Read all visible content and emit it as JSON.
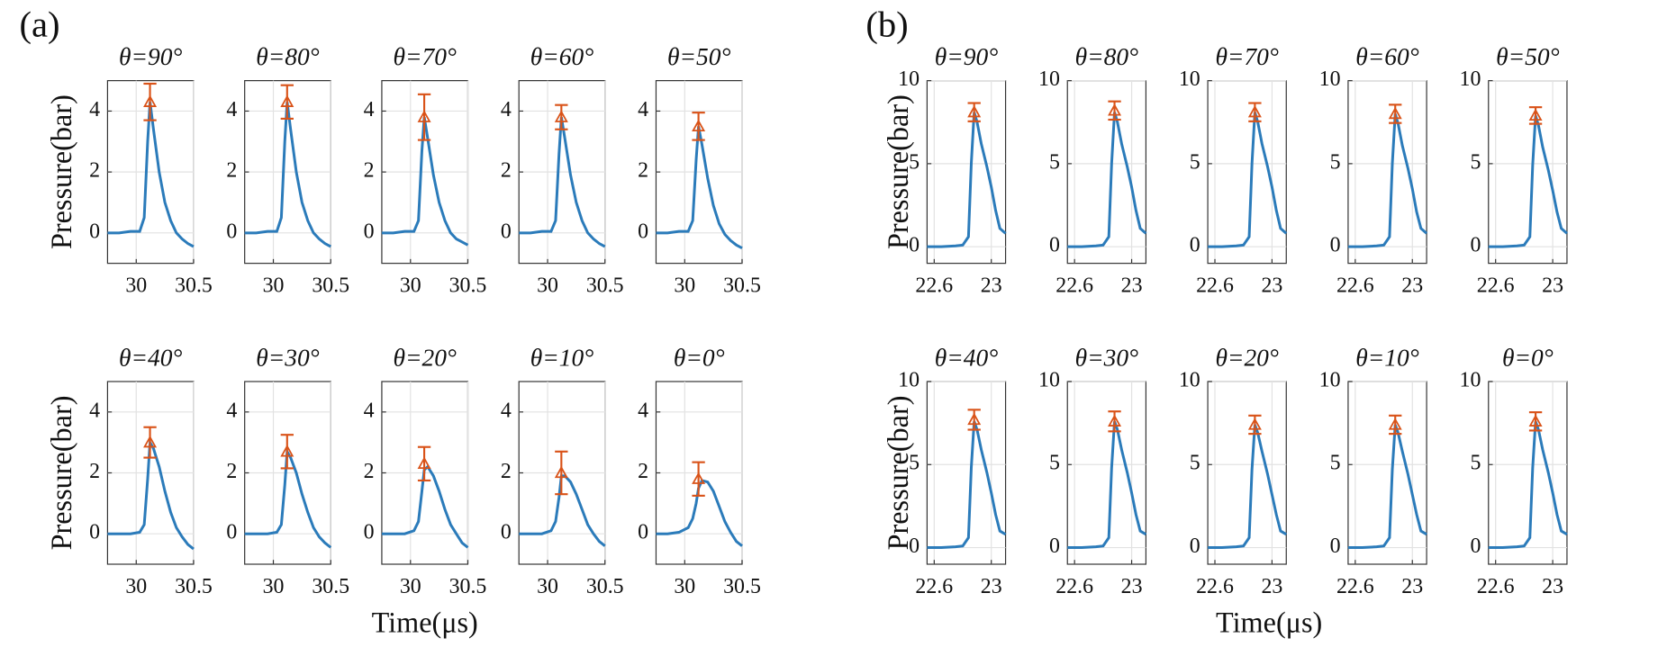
{
  "panels": [
    {
      "label": "(a)",
      "ylabel": "Pressure(bar)",
      "xlabel": "Time(μs)"
    },
    {
      "label": "(b)",
      "ylabel": "Pressure(bar)",
      "xlabel": "Time(μs)"
    }
  ],
  "chart_data": [
    {
      "type": "line",
      "title": "θ=90°",
      "xlim": [
        29.75,
        30.5
      ],
      "ylim": [
        -1,
        5
      ],
      "xticks": [
        30,
        30.5
      ],
      "yticks": [
        0,
        2,
        4
      ],
      "grid": true,
      "color": "#2b7bba",
      "x": [
        29.75,
        29.85,
        29.95,
        30.03,
        30.07,
        30.1,
        30.12,
        30.15,
        30.2,
        30.25,
        30.3,
        30.35,
        30.4,
        30.45,
        30.5
      ],
      "values": [
        0,
        0,
        0.05,
        0.05,
        0.5,
        3.0,
        4.3,
        3.4,
        2.0,
        1.0,
        0.4,
        0.0,
        -0.2,
        -0.35,
        -0.45
      ],
      "errorbar": {
        "x": 30.12,
        "value": 4.3,
        "error": 0.6,
        "color": "#d95319"
      }
    },
    {
      "type": "line",
      "title": "θ=80°",
      "xlim": [
        29.75,
        30.5
      ],
      "ylim": [
        -1,
        5
      ],
      "xticks": [
        30,
        30.5
      ],
      "yticks": [
        0,
        2,
        4
      ],
      "grid": true,
      "color": "#2b7bba",
      "x": [
        29.75,
        29.85,
        29.95,
        30.03,
        30.07,
        30.1,
        30.12,
        30.15,
        30.2,
        30.25,
        30.3,
        30.35,
        30.4,
        30.45,
        30.5
      ],
      "values": [
        0,
        0,
        0.05,
        0.05,
        0.5,
        3.0,
        4.3,
        3.4,
        2.0,
        1.0,
        0.4,
        0.0,
        -0.2,
        -0.35,
        -0.45
      ],
      "errorbar": {
        "x": 30.12,
        "value": 4.3,
        "error": 0.55,
        "color": "#d95319"
      }
    },
    {
      "type": "line",
      "title": "θ=70°",
      "xlim": [
        29.75,
        30.5
      ],
      "ylim": [
        -1,
        5
      ],
      "xticks": [
        30,
        30.5
      ],
      "yticks": [
        0,
        2,
        4
      ],
      "grid": true,
      "color": "#2b7bba",
      "x": [
        29.75,
        29.85,
        29.95,
        30.03,
        30.07,
        30.1,
        30.12,
        30.15,
        30.2,
        30.25,
        30.3,
        30.35,
        30.4,
        30.45,
        30.5
      ],
      "values": [
        0,
        0,
        0.05,
        0.05,
        0.4,
        2.7,
        3.8,
        3.1,
        1.9,
        1.0,
        0.4,
        0.0,
        -0.2,
        -0.3,
        -0.4
      ],
      "errorbar": {
        "x": 30.12,
        "value": 3.8,
        "error": 0.75,
        "color": "#d95319"
      }
    },
    {
      "type": "line",
      "title": "θ=60°",
      "xlim": [
        29.75,
        30.5
      ],
      "ylim": [
        -1,
        5
      ],
      "xticks": [
        30,
        30.5
      ],
      "yticks": [
        0,
        2,
        4
      ],
      "grid": true,
      "color": "#2b7bba",
      "x": [
        29.75,
        29.85,
        29.95,
        30.03,
        30.07,
        30.1,
        30.12,
        30.15,
        30.2,
        30.25,
        30.3,
        30.35,
        30.4,
        30.45,
        30.5
      ],
      "values": [
        0,
        0,
        0.05,
        0.05,
        0.4,
        2.6,
        3.8,
        3.1,
        1.9,
        1.0,
        0.4,
        0.0,
        -0.2,
        -0.35,
        -0.45
      ],
      "errorbar": {
        "x": 30.12,
        "value": 3.8,
        "error": 0.4,
        "color": "#d95319"
      }
    },
    {
      "type": "line",
      "title": "θ=50°",
      "xlim": [
        29.75,
        30.5
      ],
      "ylim": [
        -1,
        5
      ],
      "xticks": [
        30,
        30.5
      ],
      "yticks": [
        0,
        2,
        4
      ],
      "grid": true,
      "color": "#2b7bba",
      "x": [
        29.75,
        29.85,
        29.95,
        30.03,
        30.07,
        30.1,
        30.12,
        30.15,
        30.2,
        30.25,
        30.3,
        30.35,
        30.4,
        30.45,
        30.5
      ],
      "values": [
        0,
        0,
        0.05,
        0.05,
        0.4,
        2.4,
        3.5,
        2.9,
        1.8,
        0.9,
        0.3,
        -0.05,
        -0.25,
        -0.4,
        -0.5
      ],
      "errorbar": {
        "x": 30.12,
        "value": 3.5,
        "error": 0.45,
        "color": "#d95319"
      }
    },
    {
      "type": "line",
      "title": "θ=40°",
      "xlim": [
        29.75,
        30.5
      ],
      "ylim": [
        -1,
        5
      ],
      "xticks": [
        30,
        30.5
      ],
      "yticks": [
        0,
        2,
        4
      ],
      "grid": true,
      "color": "#2b7bba",
      "x": [
        29.75,
        29.85,
        29.95,
        30.03,
        30.07,
        30.1,
        30.12,
        30.15,
        30.2,
        30.25,
        30.3,
        30.35,
        30.4,
        30.45,
        30.5
      ],
      "values": [
        0,
        0,
        0,
        0.05,
        0.3,
        1.8,
        3.0,
        2.8,
        2.2,
        1.4,
        0.7,
        0.2,
        -0.1,
        -0.35,
        -0.5
      ],
      "errorbar": {
        "x": 30.12,
        "value": 3.0,
        "error": 0.5,
        "color": "#d95319"
      }
    },
    {
      "type": "line",
      "title": "θ=30°",
      "xlim": [
        29.75,
        30.5
      ],
      "ylim": [
        -1,
        5
      ],
      "xticks": [
        30,
        30.5
      ],
      "yticks": [
        0,
        2,
        4
      ],
      "grid": true,
      "color": "#2b7bba",
      "x": [
        29.75,
        29.85,
        29.95,
        30.03,
        30.07,
        30.1,
        30.12,
        30.15,
        30.2,
        30.25,
        30.3,
        30.35,
        30.4,
        30.45,
        30.5
      ],
      "values": [
        0,
        0,
        0,
        0.05,
        0.3,
        1.6,
        2.7,
        2.5,
        2.0,
        1.3,
        0.7,
        0.2,
        -0.1,
        -0.3,
        -0.45
      ],
      "errorbar": {
        "x": 30.12,
        "value": 2.7,
        "error": 0.55,
        "color": "#d95319"
      }
    },
    {
      "type": "line",
      "title": "θ=20°",
      "xlim": [
        29.75,
        30.5
      ],
      "ylim": [
        -1,
        5
      ],
      "xticks": [
        30,
        30.5
      ],
      "yticks": [
        0,
        2,
        4
      ],
      "grid": true,
      "color": "#2b7bba",
      "x": [
        29.75,
        29.85,
        29.95,
        30.03,
        30.07,
        30.1,
        30.12,
        30.15,
        30.2,
        30.25,
        30.3,
        30.35,
        30.4,
        30.45,
        30.5
      ],
      "values": [
        0,
        0,
        0,
        0.1,
        0.4,
        1.4,
        2.1,
        2.2,
        1.9,
        1.4,
        0.8,
        0.3,
        0,
        -0.3,
        -0.45
      ],
      "errorbar": {
        "x": 30.12,
        "value": 2.3,
        "error": 0.55,
        "color": "#d95319"
      }
    },
    {
      "type": "line",
      "title": "θ=10°",
      "xlim": [
        29.75,
        30.5
      ],
      "ylim": [
        -1,
        5
      ],
      "xticks": [
        30,
        30.5
      ],
      "yticks": [
        0,
        2,
        4
      ],
      "grid": true,
      "color": "#2b7bba",
      "x": [
        29.75,
        29.85,
        29.95,
        30.03,
        30.07,
        30.1,
        30.12,
        30.15,
        30.2,
        30.25,
        30.3,
        30.35,
        30.4,
        30.45,
        30.5
      ],
      "values": [
        0,
        0,
        0,
        0.1,
        0.4,
        1.2,
        1.9,
        1.9,
        1.7,
        1.3,
        0.8,
        0.3,
        0,
        -0.25,
        -0.4
      ],
      "errorbar": {
        "x": 30.12,
        "value": 2.0,
        "error": 0.7,
        "color": "#d95319"
      }
    },
    {
      "type": "line",
      "title": "θ=0°",
      "xlim": [
        29.75,
        30.5
      ],
      "ylim": [
        -1,
        5
      ],
      "xticks": [
        30,
        30.5
      ],
      "yticks": [
        0,
        2,
        4
      ],
      "grid": true,
      "color": "#2b7bba",
      "x": [
        29.75,
        29.85,
        29.95,
        30.03,
        30.07,
        30.1,
        30.12,
        30.15,
        30.2,
        30.25,
        30.3,
        30.35,
        30.4,
        30.45,
        30.5
      ],
      "values": [
        0,
        0,
        0.05,
        0.2,
        0.5,
        1.0,
        1.5,
        1.75,
        1.7,
        1.4,
        0.9,
        0.4,
        0.05,
        -0.25,
        -0.4
      ],
      "errorbar": {
        "x": 30.12,
        "value": 1.8,
        "error": 0.55,
        "color": "#d95319"
      }
    },
    {
      "type": "line",
      "title": "θ=90°",
      "xlim": [
        22.55,
        23.1
      ],
      "ylim": [
        -1,
        10
      ],
      "xticks": [
        22.6,
        23
      ],
      "yticks": [
        0,
        5,
        10
      ],
      "grid": true,
      "color": "#2b7bba",
      "x": [
        22.55,
        22.65,
        22.75,
        22.8,
        22.84,
        22.86,
        22.88,
        22.9,
        22.93,
        22.97,
        23.0,
        23.03,
        23.06,
        23.1
      ],
      "values": [
        0,
        0,
        0.05,
        0.1,
        0.6,
        5,
        8.1,
        7.5,
        6.2,
        4.8,
        3.6,
        2.2,
        1.1,
        0.8
      ],
      "errorbar": {
        "x": 22.88,
        "value": 8.1,
        "error": 0.55,
        "color": "#d95319"
      }
    },
    {
      "type": "line",
      "title": "θ=80°",
      "xlim": [
        22.55,
        23.1
      ],
      "ylim": [
        -1,
        10
      ],
      "xticks": [
        22.6,
        23
      ],
      "yticks": [
        0,
        5,
        10
      ],
      "grid": true,
      "color": "#2b7bba",
      "x": [
        22.55,
        22.65,
        22.75,
        22.8,
        22.84,
        22.86,
        22.88,
        22.9,
        22.93,
        22.97,
        23.0,
        23.03,
        23.06,
        23.1
      ],
      "values": [
        0,
        0,
        0.05,
        0.1,
        0.6,
        5,
        8.1,
        7.5,
        6.2,
        4.8,
        3.6,
        2.2,
        1.1,
        0.8
      ],
      "errorbar": {
        "x": 22.88,
        "value": 8.2,
        "error": 0.55,
        "color": "#d95319"
      }
    },
    {
      "type": "line",
      "title": "θ=70°",
      "xlim": [
        22.55,
        23.1
      ],
      "ylim": [
        -1,
        10
      ],
      "xticks": [
        22.6,
        23
      ],
      "yticks": [
        0,
        5,
        10
      ],
      "grid": true,
      "color": "#2b7bba",
      "x": [
        22.55,
        22.65,
        22.75,
        22.8,
        22.84,
        22.86,
        22.88,
        22.9,
        22.93,
        22.97,
        23.0,
        23.03,
        23.06,
        23.1
      ],
      "values": [
        0,
        0,
        0.05,
        0.1,
        0.6,
        5,
        8.1,
        7.5,
        6.2,
        4.8,
        3.6,
        2.2,
        1.1,
        0.8
      ],
      "errorbar": {
        "x": 22.88,
        "value": 8.1,
        "error": 0.55,
        "color": "#d95319"
      }
    },
    {
      "type": "line",
      "title": "θ=60°",
      "xlim": [
        22.55,
        23.1
      ],
      "ylim": [
        -1,
        10
      ],
      "xticks": [
        22.6,
        23
      ],
      "yticks": [
        0,
        5,
        10
      ],
      "grid": true,
      "color": "#2b7bba",
      "x": [
        22.55,
        22.65,
        22.75,
        22.8,
        22.84,
        22.86,
        22.88,
        22.9,
        22.93,
        22.97,
        23.0,
        23.03,
        23.06,
        23.1
      ],
      "values": [
        0,
        0,
        0.05,
        0.1,
        0.6,
        5,
        8.0,
        7.4,
        6.1,
        4.7,
        3.5,
        2.1,
        1.1,
        0.8
      ],
      "errorbar": {
        "x": 22.88,
        "value": 8.0,
        "error": 0.55,
        "color": "#d95319"
      }
    },
    {
      "type": "line",
      "title": "θ=50°",
      "xlim": [
        22.55,
        23.1
      ],
      "ylim": [
        -1,
        10
      ],
      "xticks": [
        22.6,
        23
      ],
      "yticks": [
        0,
        5,
        10
      ],
      "grid": true,
      "color": "#2b7bba",
      "x": [
        22.55,
        22.65,
        22.75,
        22.8,
        22.84,
        22.86,
        22.88,
        22.9,
        22.93,
        22.97,
        23.0,
        23.03,
        23.06,
        23.1
      ],
      "values": [
        0,
        0,
        0.05,
        0.1,
        0.6,
        4.9,
        7.9,
        7.3,
        6.0,
        4.6,
        3.4,
        2.1,
        1.1,
        0.8
      ],
      "errorbar": {
        "x": 22.88,
        "value": 7.9,
        "error": 0.5,
        "color": "#d95319"
      }
    },
    {
      "type": "line",
      "title": "θ=40°",
      "xlim": [
        22.55,
        23.1
      ],
      "ylim": [
        -1,
        10
      ],
      "xticks": [
        22.6,
        23
      ],
      "yticks": [
        0,
        5,
        10
      ],
      "grid": true,
      "color": "#2b7bba",
      "x": [
        22.55,
        22.65,
        22.75,
        22.8,
        22.84,
        22.86,
        22.88,
        22.9,
        22.93,
        22.97,
        23.0,
        23.03,
        23.06,
        23.1
      ],
      "values": [
        0,
        0,
        0.05,
        0.1,
        0.6,
        4.8,
        7.6,
        7.1,
        5.9,
        4.5,
        3.3,
        2.0,
        1.0,
        0.8
      ],
      "errorbar": {
        "x": 22.88,
        "value": 7.7,
        "error": 0.6,
        "color": "#d95319"
      }
    },
    {
      "type": "line",
      "title": "θ=30°",
      "xlim": [
        22.55,
        23.1
      ],
      "ylim": [
        -1,
        10
      ],
      "xticks": [
        22.6,
        23
      ],
      "yticks": [
        0,
        5,
        10
      ],
      "grid": true,
      "color": "#2b7bba",
      "x": [
        22.55,
        22.65,
        22.75,
        22.8,
        22.84,
        22.86,
        22.88,
        22.9,
        22.93,
        22.97,
        23.0,
        23.03,
        23.06,
        23.1
      ],
      "values": [
        0,
        0,
        0.05,
        0.1,
        0.6,
        4.8,
        7.6,
        7.1,
        5.9,
        4.5,
        3.3,
        2.0,
        1.0,
        0.8
      ],
      "errorbar": {
        "x": 22.88,
        "value": 7.6,
        "error": 0.6,
        "color": "#d95319"
      }
    },
    {
      "type": "line",
      "title": "θ=20°",
      "xlim": [
        22.55,
        23.1
      ],
      "ylim": [
        -1,
        10
      ],
      "xticks": [
        22.6,
        23
      ],
      "yticks": [
        0,
        5,
        10
      ],
      "grid": true,
      "color": "#2b7bba",
      "x": [
        22.55,
        22.65,
        22.75,
        22.8,
        22.84,
        22.86,
        22.88,
        22.9,
        22.93,
        22.97,
        23.0,
        23.03,
        23.06,
        23.1
      ],
      "values": [
        0,
        0,
        0.05,
        0.1,
        0.6,
        4.7,
        7.4,
        6.9,
        5.8,
        4.4,
        3.2,
        2.0,
        1.0,
        0.8
      ],
      "errorbar": {
        "x": 22.88,
        "value": 7.4,
        "error": 0.55,
        "color": "#d95319"
      }
    },
    {
      "type": "line",
      "title": "θ=10°",
      "xlim": [
        22.55,
        23.1
      ],
      "ylim": [
        -1,
        10
      ],
      "xticks": [
        22.6,
        23
      ],
      "yticks": [
        0,
        5,
        10
      ],
      "grid": true,
      "color": "#2b7bba",
      "x": [
        22.55,
        22.65,
        22.75,
        22.8,
        22.84,
        22.86,
        22.88,
        22.9,
        22.93,
        22.97,
        23.0,
        23.03,
        23.06,
        23.1
      ],
      "values": [
        0,
        0,
        0.05,
        0.1,
        0.6,
        4.7,
        7.4,
        6.9,
        5.8,
        4.4,
        3.2,
        2.0,
        1.0,
        0.8
      ],
      "errorbar": {
        "x": 22.88,
        "value": 7.4,
        "error": 0.55,
        "color": "#d95319"
      }
    },
    {
      "type": "line",
      "title": "θ=0°",
      "xlim": [
        22.55,
        23.1
      ],
      "ylim": [
        -1,
        10
      ],
      "xticks": [
        22.6,
        23
      ],
      "yticks": [
        0,
        5,
        10
      ],
      "grid": true,
      "color": "#2b7bba",
      "x": [
        22.55,
        22.65,
        22.75,
        22.8,
        22.84,
        22.86,
        22.88,
        22.9,
        22.93,
        22.97,
        23.0,
        23.03,
        23.06,
        23.1
      ],
      "values": [
        0,
        0,
        0.05,
        0.1,
        0.6,
        4.8,
        7.6,
        7.1,
        5.9,
        4.5,
        3.3,
        2.0,
        1.0,
        0.8
      ],
      "errorbar": {
        "x": 22.88,
        "value": 7.6,
        "error": 0.55,
        "color": "#d95319"
      }
    }
  ]
}
